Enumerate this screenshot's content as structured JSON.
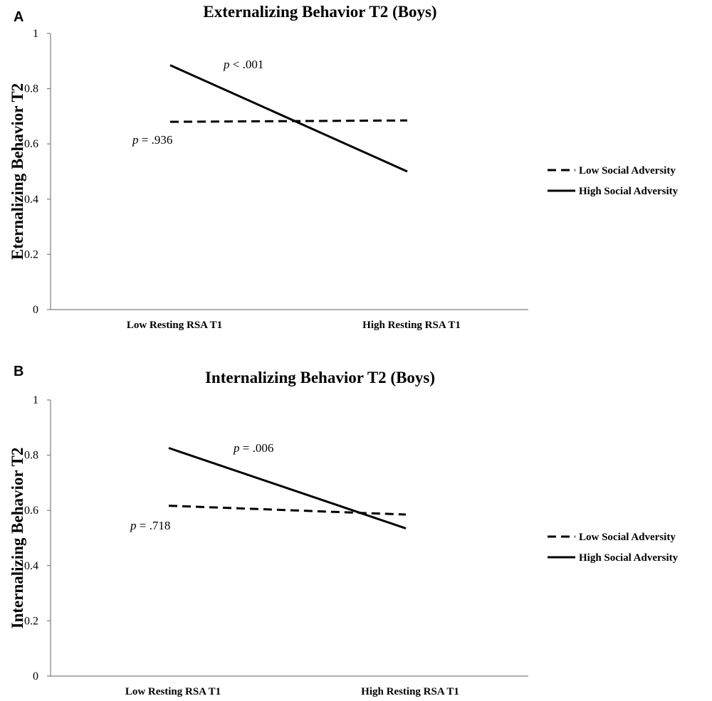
{
  "chart_data": [
    {
      "panel": "A",
      "type": "line",
      "title": "Externalizing Behavior T2 (Boys)",
      "ylabel": "Eternalizing Behavior T2",
      "xlabel": "",
      "categories": [
        "Low Resting RSA T1",
        "High Resting RSA T1"
      ],
      "ylim": [
        0,
        1
      ],
      "yticks": [
        "0",
        "0.2",
        "0.4",
        "0.6",
        "0.8",
        "1"
      ],
      "series": [
        {
          "name": "Low Social Adversity",
          "style": "dashed",
          "values": [
            0.68,
            0.685
          ]
        },
        {
          "name": "High Social Adversity",
          "style": "solid",
          "values": [
            0.885,
            0.5
          ]
        }
      ],
      "annotations": [
        {
          "italic": "p",
          "rest": " < .001",
          "series": "High Social Adversity"
        },
        {
          "italic": "p",
          "rest": " = .936",
          "series": "Low Social Adversity"
        }
      ],
      "legend_position": "right"
    },
    {
      "panel": "B",
      "type": "line",
      "title": "Internalizing Behavior T2 (Boys)",
      "ylabel": "Internalizing Behavior T2",
      "xlabel": "",
      "categories": [
        "Low Resting RSA T1",
        "High Resting RSA T1"
      ],
      "ylim": [
        0,
        1
      ],
      "yticks": [
        "0",
        "0.2",
        "0.4",
        "0.6",
        "0.8",
        "1"
      ],
      "series": [
        {
          "name": "Low Social Adversity",
          "style": "dashed",
          "values": [
            0.617,
            0.585
          ]
        },
        {
          "name": "High Social Adversity",
          "style": "solid",
          "values": [
            0.826,
            0.535
          ]
        }
      ],
      "annotations": [
        {
          "italic": "p",
          "rest": " = .006",
          "series": "High Social Adversity"
        },
        {
          "italic": "p",
          "rest": " = .718",
          "series": "Low Social Adversity"
        }
      ],
      "legend_position": "right"
    }
  ]
}
